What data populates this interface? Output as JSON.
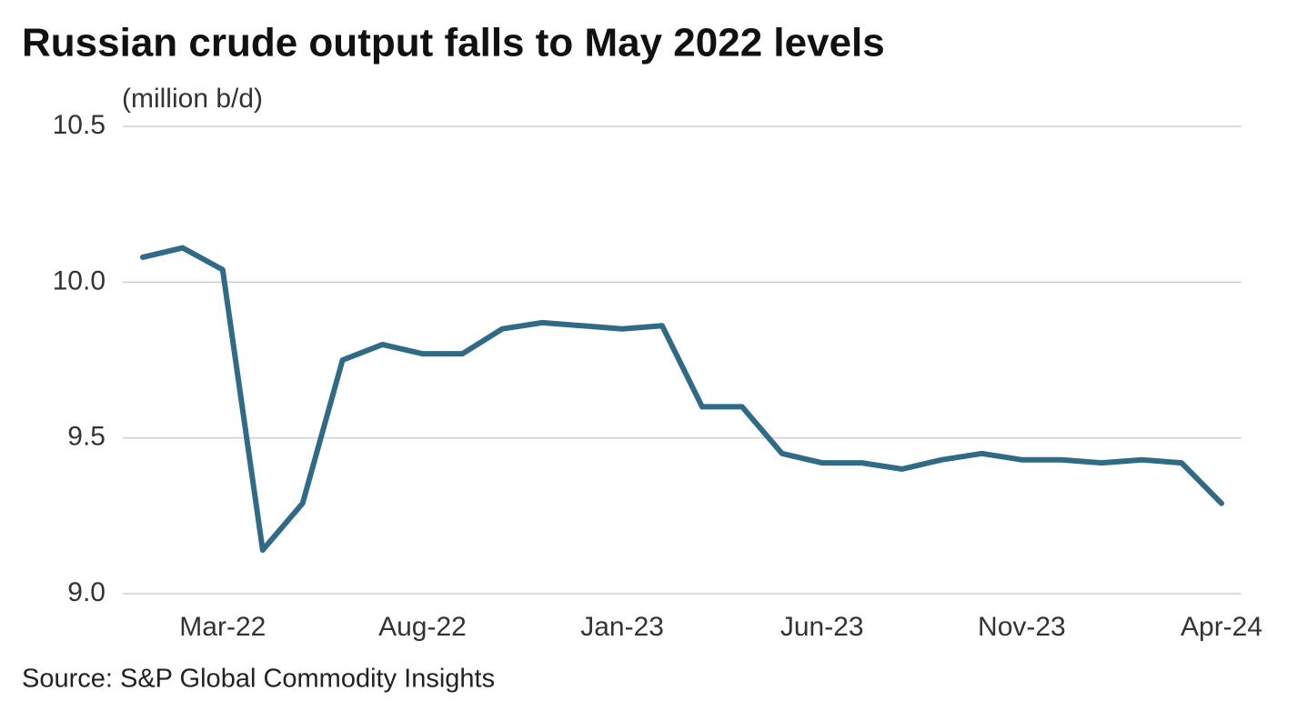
{
  "chart_data": {
    "type": "line",
    "title": "Russian crude output falls to May 2022 levels",
    "y_label": "(million b/d)",
    "source": "Source:  S&P Global Commodity Insights",
    "categories": [
      null,
      null,
      "Mar-22",
      null,
      null,
      null,
      null,
      "Aug-22",
      null,
      null,
      null,
      null,
      "Jan-23",
      null,
      null,
      null,
      null,
      "Jun-23",
      null,
      null,
      null,
      null,
      "Nov-23",
      null,
      null,
      null,
      null,
      "Apr-24"
    ],
    "series": [
      {
        "color": "#2f6b86",
        "values": [
          10.08,
          10.11,
          10.04,
          9.14,
          9.29,
          9.75,
          9.8,
          9.77,
          9.77,
          9.85,
          9.87,
          9.86,
          9.85,
          9.86,
          9.6,
          9.6,
          9.45,
          9.42,
          9.42,
          9.4,
          9.43,
          9.45,
          9.43,
          9.43,
          9.42,
          9.43,
          9.42,
          9.29
        ]
      }
    ],
    "ylim": [
      9.0,
      10.5
    ],
    "yticks": [
      {
        "value": 9.0,
        "label": "9.0"
      },
      9.5,
      {
        "value": 10.0,
        "label": "10.0"
      },
      10.5
    ],
    "grid": true
  }
}
